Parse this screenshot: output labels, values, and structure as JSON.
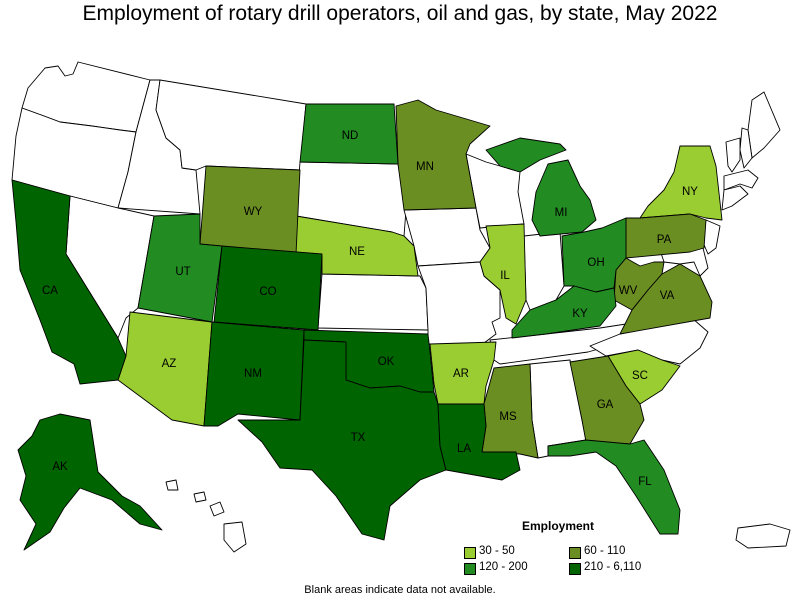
{
  "title": "Employment of rotary drill operators, oil and gas, by state, May 2022",
  "legend": {
    "title": "Employment",
    "items": [
      {
        "label": "30 - 50",
        "color": "#9acd32"
      },
      {
        "label": "60 - 110",
        "color": "#6b8e23"
      },
      {
        "label": "120 - 200",
        "color": "#228b22"
      },
      {
        "label": "210 - 6,110",
        "color": "#006400"
      }
    ]
  },
  "footnote": "Blank areas indicate data not available.",
  "colors": {
    "no_data": "#ffffff",
    "border": "#000000",
    "band_30_50": "#9acd32",
    "band_60_110": "#6b8e23",
    "band_120_200": "#228b22",
    "band_210_6110": "#006400"
  },
  "states": [
    {
      "abbr": "AK",
      "band": "210 - 6,110"
    },
    {
      "abbr": "CA",
      "band": "210 - 6,110"
    },
    {
      "abbr": "CO",
      "band": "210 - 6,110"
    },
    {
      "abbr": "NM",
      "band": "210 - 6,110"
    },
    {
      "abbr": "OK",
      "band": "210 - 6,110"
    },
    {
      "abbr": "TX",
      "band": "210 - 6,110"
    },
    {
      "abbr": "LA",
      "band": "210 - 6,110"
    },
    {
      "abbr": "ND",
      "band": "120 - 200"
    },
    {
      "abbr": "UT",
      "band": "120 - 200"
    },
    {
      "abbr": "MI",
      "band": "120 - 200"
    },
    {
      "abbr": "OH",
      "band": "120 - 200"
    },
    {
      "abbr": "KY",
      "band": "120 - 200"
    },
    {
      "abbr": "FL",
      "band": "120 - 200"
    },
    {
      "abbr": "WY",
      "band": "60 - 110"
    },
    {
      "abbr": "MN",
      "band": "60 - 110"
    },
    {
      "abbr": "PA",
      "band": "60 - 110"
    },
    {
      "abbr": "WV",
      "band": "60 - 110"
    },
    {
      "abbr": "VA",
      "band": "60 - 110"
    },
    {
      "abbr": "MS",
      "band": "60 - 110"
    },
    {
      "abbr": "GA",
      "band": "60 - 110"
    },
    {
      "abbr": "NE",
      "band": "30 - 50"
    },
    {
      "abbr": "IL",
      "band": "30 - 50"
    },
    {
      "abbr": "NY",
      "band": "30 - 50"
    },
    {
      "abbr": "AZ",
      "band": "30 - 50"
    },
    {
      "abbr": "AR",
      "band": "30 - 50"
    },
    {
      "abbr": "SC",
      "band": "30 - 50"
    }
  ]
}
